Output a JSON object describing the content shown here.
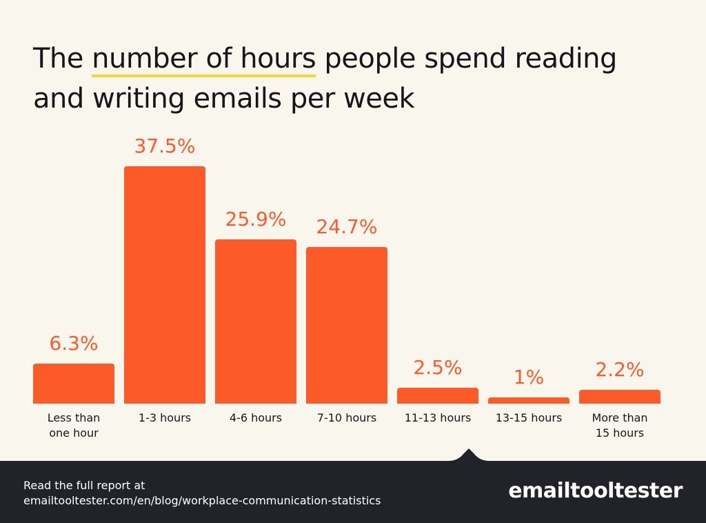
{
  "chart_data": {
    "type": "bar",
    "title_parts": [
      "The ",
      "number of hours",
      " people spend reading and writing emails per week"
    ],
    "categories": [
      "Less than one hour",
      "1-3 hours",
      "4-6 hours",
      "7-10 hours",
      "11-13 hours",
      "13-15 hours",
      "More than 15 hours"
    ],
    "values": [
      6.3,
      37.5,
      25.9,
      24.7,
      2.5,
      1,
      2.2
    ],
    "value_labels": [
      "6.3%",
      "37.5%",
      "25.9%",
      "24.7%",
      "2.5%",
      "1%",
      "2.2%"
    ],
    "color": "#fd5a2a"
  },
  "footer": {
    "lead": "Read the full report at",
    "url": "emailtooltester.com/en/blog/workplace-communication-statistics",
    "brand": "emailtooltester"
  }
}
